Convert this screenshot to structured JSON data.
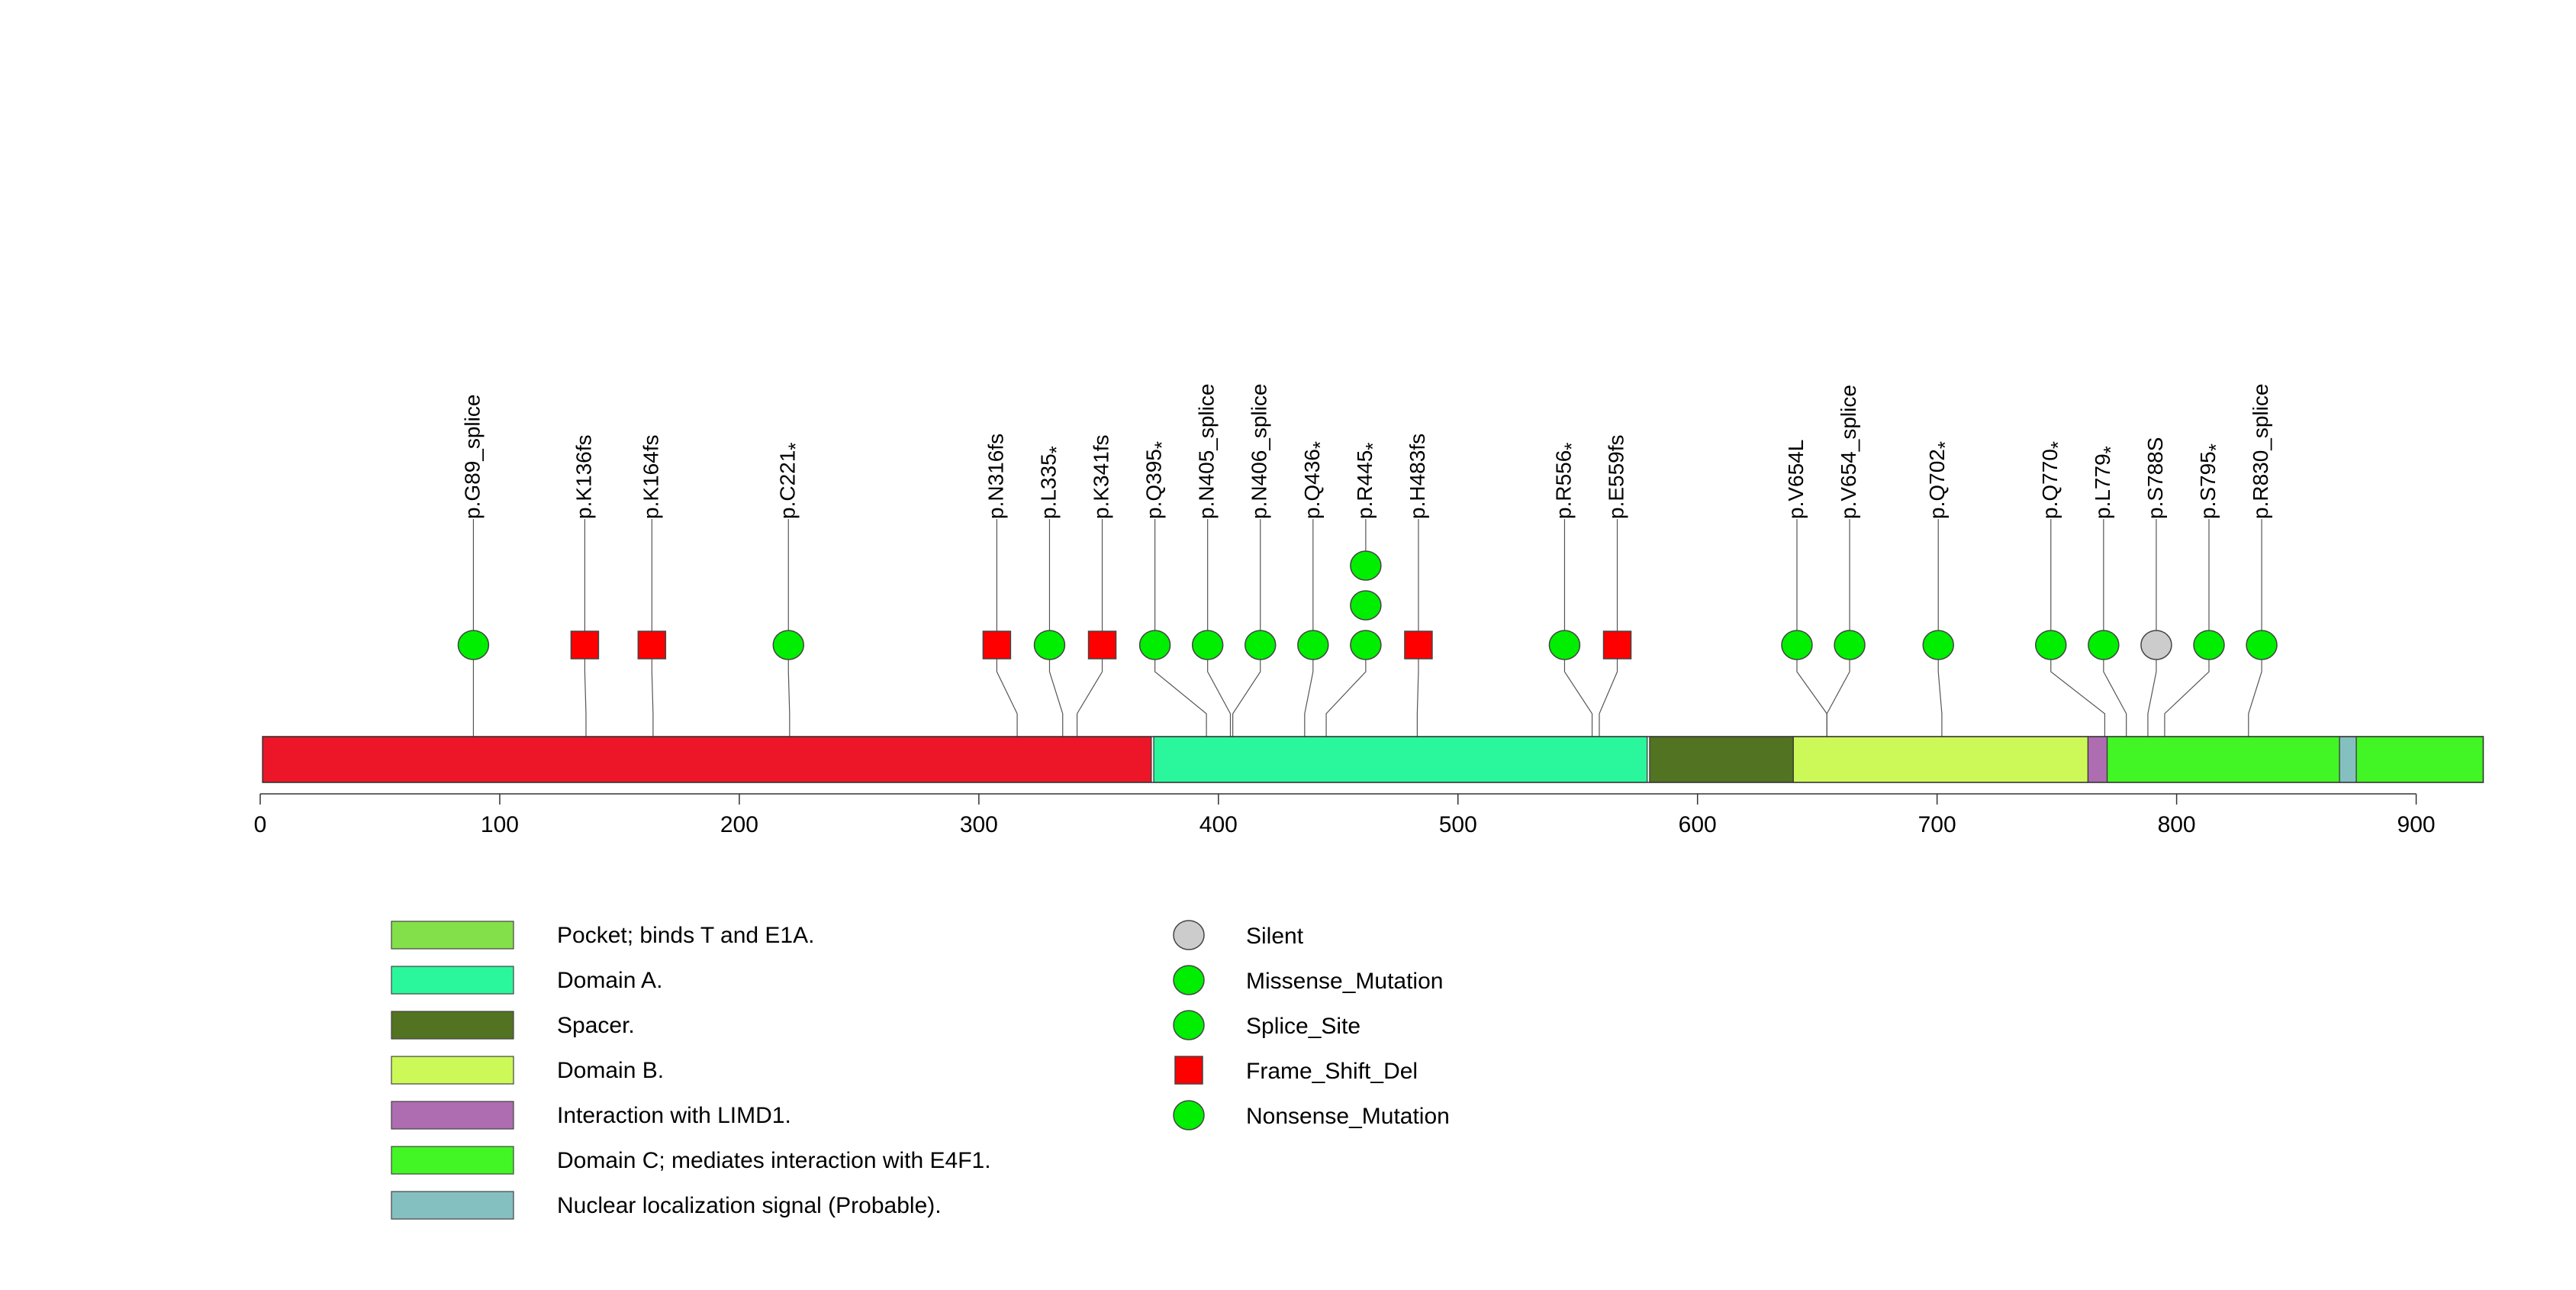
{
  "axis": {
    "min": 0,
    "max": 928,
    "ticks": [
      0,
      100,
      200,
      300,
      400,
      500,
      600,
      700,
      800,
      900
    ]
  },
  "colors": {
    "base": "#ec1628",
    "domain_a": "#2af79b",
    "spacer": "#527321",
    "domain_b": "#cdf958",
    "limd1": "#ad6db0",
    "domain_c": "#42f524",
    "nls": "#85c0c1",
    "pocket": "#84e04a",
    "missense": "#00ee00",
    "frameshift": "#ff0000",
    "silent": "#cccccc"
  },
  "protein_segments": [
    {
      "start": 1,
      "end": 372,
      "color_key": "base"
    },
    {
      "start": 373,
      "end": 579,
      "color_key": "domain_a"
    },
    {
      "start": 580,
      "end": 640,
      "color_key": "spacer"
    },
    {
      "start": 640,
      "end": 763,
      "color_key": "domain_b"
    },
    {
      "start": 763,
      "end": 771,
      "color_key": "limd1"
    },
    {
      "start": 771,
      "end": 868,
      "color_key": "domain_c"
    },
    {
      "start": 868,
      "end": 875,
      "color_key": "nls"
    },
    {
      "start": 875,
      "end": 928,
      "color_key": "domain_c"
    }
  ],
  "mutations": [
    {
      "label": "p.G89_splice",
      "star": false,
      "position": 89,
      "slot": 89,
      "type": "splice",
      "count": 1
    },
    {
      "label": "p.K136fs",
      "star": false,
      "position": 136,
      "slot": 135.5,
      "type": "frameshift",
      "count": 1
    },
    {
      "label": "p.K164fs",
      "star": false,
      "position": 164,
      "slot": 163.5,
      "type": "frameshift",
      "count": 1
    },
    {
      "label": "p.C221",
      "star": true,
      "position": 221,
      "slot": 220.5,
      "type": "nonsense",
      "count": 1
    },
    {
      "label": "p.N316fs",
      "star": false,
      "position": 316,
      "slot": 307.5,
      "type": "frameshift",
      "count": 1
    },
    {
      "label": "p.L335",
      "star": true,
      "position": 335,
      "slot": 329.5,
      "type": "nonsense",
      "count": 1
    },
    {
      "label": "p.K341fs",
      "star": false,
      "position": 341,
      "slot": 351.5,
      "type": "frameshift",
      "count": 1
    },
    {
      "label": "p.Q395",
      "star": true,
      "position": 395,
      "slot": 373.5,
      "type": "nonsense",
      "count": 1
    },
    {
      "label": "p.N405_splice",
      "star": false,
      "position": 405,
      "slot": 395.5,
      "type": "splice",
      "count": 1
    },
    {
      "label": "p.N406_splice",
      "star": false,
      "position": 406,
      "slot": 417.5,
      "type": "splice",
      "count": 1
    },
    {
      "label": "p.Q436",
      "star": true,
      "position": 436,
      "slot": 439.5,
      "type": "nonsense",
      "count": 1
    },
    {
      "label": "p.R445",
      "star": true,
      "position": 445,
      "slot": 461.5,
      "type": "nonsense",
      "count": 3
    },
    {
      "label": "p.H483fs",
      "star": false,
      "position": 483,
      "slot": 483.5,
      "type": "frameshift",
      "count": 1
    },
    {
      "label": "p.R556",
      "star": true,
      "position": 556,
      "slot": 544.5,
      "type": "nonsense",
      "count": 1
    },
    {
      "label": "p.E559fs",
      "star": false,
      "position": 559,
      "slot": 566.5,
      "type": "frameshift",
      "count": 1
    },
    {
      "label": "p.V654L",
      "star": false,
      "position": 654,
      "slot": 641.5,
      "type": "missense",
      "count": 1
    },
    {
      "label": "p.V654_splice",
      "star": false,
      "position": 654,
      "slot": 663.5,
      "type": "splice",
      "count": 1
    },
    {
      "label": "p.Q702",
      "star": true,
      "position": 702,
      "slot": 700.5,
      "type": "nonsense",
      "count": 1
    },
    {
      "label": "p.Q770",
      "star": true,
      "position": 770,
      "slot": 747.5,
      "type": "nonsense",
      "count": 1
    },
    {
      "label": "p.L779",
      "star": true,
      "position": 779,
      "slot": 769.5,
      "type": "nonsense",
      "count": 1
    },
    {
      "label": "p.S788S",
      "star": false,
      "position": 788,
      "slot": 791.5,
      "type": "silent",
      "count": 1
    },
    {
      "label": "p.S795",
      "star": true,
      "position": 795,
      "slot": 813.5,
      "type": "nonsense",
      "count": 1
    },
    {
      "label": "p.R830_splice",
      "star": false,
      "position": 830,
      "slot": 835.5,
      "type": "splice",
      "count": 1
    }
  ],
  "legend_domains": [
    {
      "label": "Pocket; binds T and E1A.",
      "color_key": "pocket"
    },
    {
      "label": "Domain A.",
      "color_key": "domain_a"
    },
    {
      "label": "Spacer.",
      "color_key": "spacer"
    },
    {
      "label": "Domain B.",
      "color_key": "domain_b"
    },
    {
      "label": "Interaction with LIMD1.",
      "color_key": "limd1"
    },
    {
      "label": "Domain C; mediates interaction with E4F1.",
      "color_key": "domain_c"
    },
    {
      "label": "Nuclear localization signal (Probable).",
      "color_key": "nls"
    }
  ],
  "legend_mutations": [
    {
      "label": "Silent",
      "type": "silent"
    },
    {
      "label": "Missense_Mutation",
      "type": "missense"
    },
    {
      "label": "Splice_Site",
      "type": "splice"
    },
    {
      "label": "Frame_Shift_Del",
      "type": "frameshift"
    },
    {
      "label": "Nonsense_Mutation",
      "type": "nonsense"
    }
  ],
  "star_glyph": "*"
}
